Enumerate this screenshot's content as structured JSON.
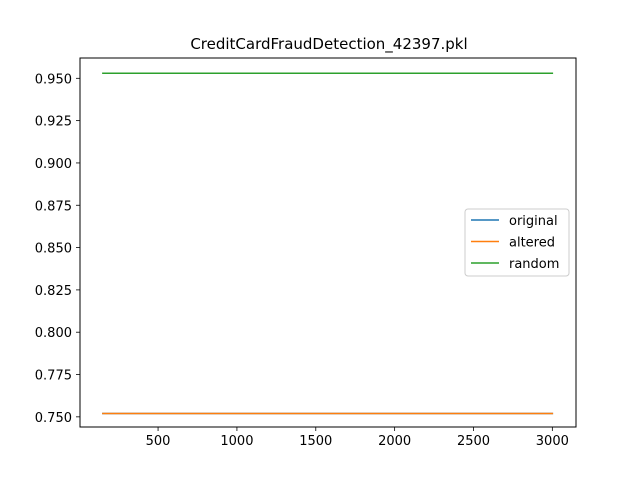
{
  "chart_data": {
    "type": "line",
    "title": "CreditCardFraudDetection_42397.pkl",
    "xlabel": "",
    "ylabel": "",
    "xlim": [
      5,
      3150
    ],
    "ylim": [
      0.744,
      0.962
    ],
    "x_ticks": [
      500,
      1000,
      1500,
      2000,
      2500,
      3000
    ],
    "y_ticks": [
      0.75,
      0.775,
      0.8,
      0.825,
      0.85,
      0.875,
      0.9,
      0.925,
      0.95
    ],
    "x_tick_labels": [
      "500",
      "1000",
      "1500",
      "2000",
      "2500",
      "3000"
    ],
    "y_tick_labels": [
      "0.750",
      "0.775",
      "0.800",
      "0.825",
      "0.850",
      "0.875",
      "0.900",
      "0.925",
      "0.950"
    ],
    "grid": false,
    "legend_position": "center-right",
    "series": [
      {
        "name": "original",
        "color": "#1f77b4",
        "x": [
          150,
          3000
        ],
        "y": [
          0.752,
          0.752
        ]
      },
      {
        "name": "altered",
        "color": "#ff7f0e",
        "x": [
          150,
          3000
        ],
        "y": [
          0.752,
          0.752
        ]
      },
      {
        "name": "random",
        "color": "#2ca02c",
        "x": [
          150,
          3000
        ],
        "y": [
          0.953,
          0.953
        ]
      }
    ]
  }
}
